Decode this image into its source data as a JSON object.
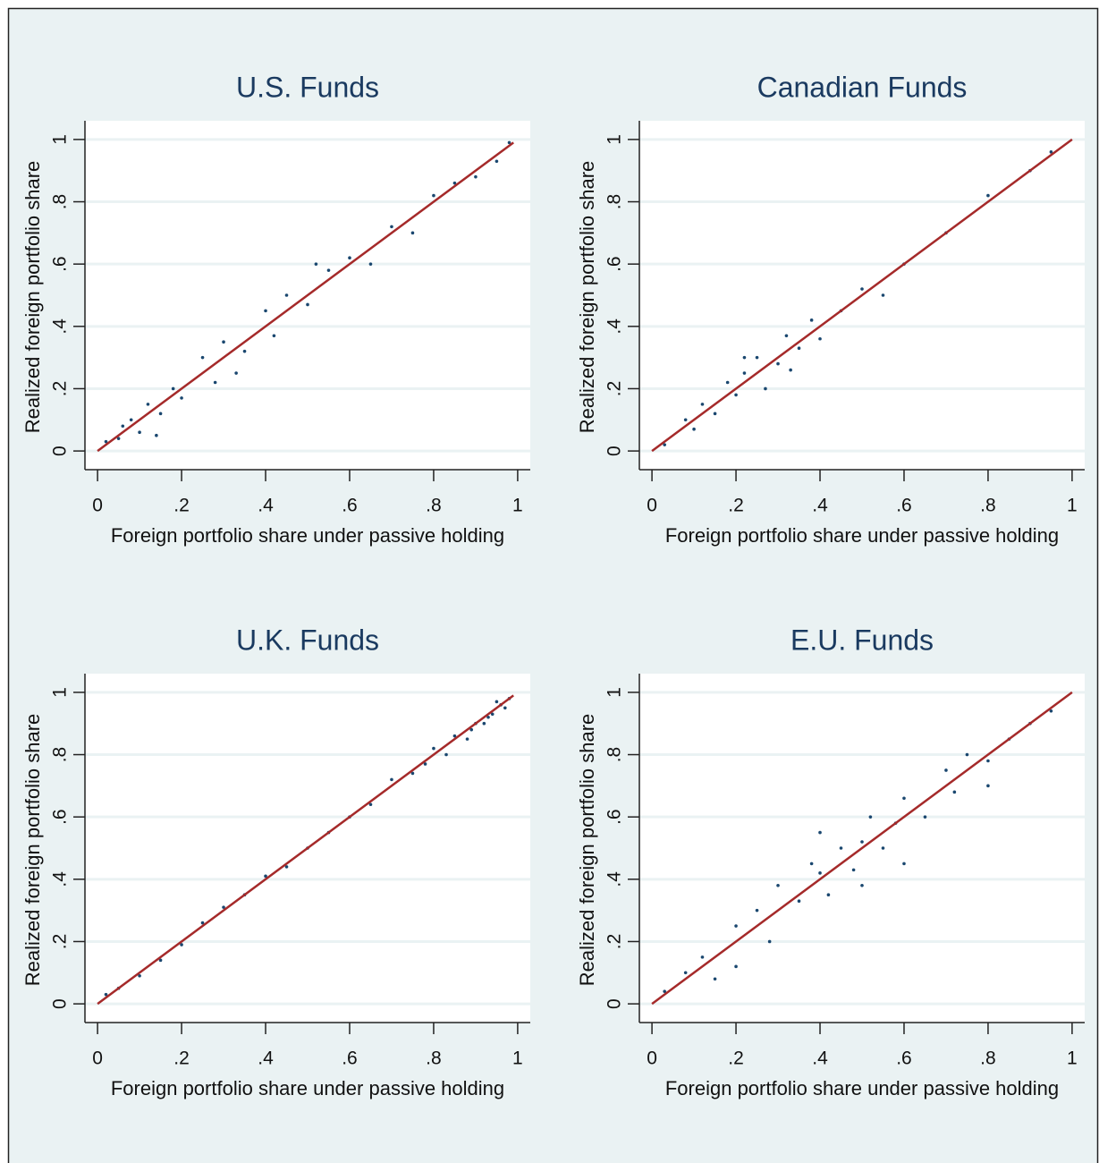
{
  "chart_data": [
    {
      "type": "scatter",
      "title": "U.S. Funds",
      "x_label": "Foreign portfolio share under passive holding",
      "y_label": "Realized foreign portfolio share",
      "xlim": [
        -0.03,
        1.03
      ],
      "ylim": [
        -0.06,
        1.06
      ],
      "xticks": [
        0,
        {
          "value": 0.2,
          "label": ".2"
        },
        {
          "value": 0.4,
          "label": ".4"
        },
        {
          "value": 0.6,
          "label": ".6"
        },
        {
          "value": 0.8,
          "label": ".8"
        },
        1
      ],
      "yticks": [
        0,
        {
          "value": 0.2,
          "label": ".2"
        },
        {
          "value": 0.4,
          "label": ".4"
        },
        {
          "value": 0.6,
          "label": ".6"
        },
        {
          "value": 0.8,
          "label": ".8"
        },
        1
      ],
      "grid": true,
      "series": [
        {
          "type": "scatter",
          "color": "#1a476f",
          "x": [
            0.02,
            0.05,
            0.08,
            0.1,
            0.12,
            0.15,
            0.18,
            0.2,
            0.25,
            0.28,
            0.3,
            0.35,
            0.4,
            0.42,
            0.45,
            0.5,
            0.55,
            0.6,
            0.65,
            0.7,
            0.75,
            0.8,
            0.85,
            0.9,
            0.95,
            0.98,
            0.06,
            0.14,
            0.33,
            0.52
          ],
          "values": [
            0.03,
            0.04,
            0.1,
            0.06,
            0.15,
            0.12,
            0.2,
            0.17,
            0.3,
            0.22,
            0.35,
            0.32,
            0.45,
            0.37,
            0.5,
            0.47,
            0.58,
            0.62,
            0.6,
            0.72,
            0.7,
            0.82,
            0.86,
            0.88,
            0.93,
            0.99,
            0.08,
            0.05,
            0.25,
            0.6
          ]
        },
        {
          "type": "line",
          "color": "#a52a2a",
          "x": [
            0,
            0.99
          ],
          "values": [
            0,
            0.99
          ]
        }
      ]
    },
    {
      "type": "scatter",
      "title": "Canadian Funds",
      "x_label": "Foreign portfolio share under passive holding",
      "y_label": "Realized foreign portfolio share",
      "xlim": [
        -0.03,
        1.03
      ],
      "ylim": [
        -0.06,
        1.06
      ],
      "xticks": [
        0,
        {
          "value": 0.2,
          "label": ".2"
        },
        {
          "value": 0.4,
          "label": ".4"
        },
        {
          "value": 0.6,
          "label": ".6"
        },
        {
          "value": 0.8,
          "label": ".8"
        },
        1
      ],
      "yticks": [
        0,
        {
          "value": 0.2,
          "label": ".2"
        },
        {
          "value": 0.4,
          "label": ".4"
        },
        {
          "value": 0.6,
          "label": ".6"
        },
        {
          "value": 0.8,
          "label": ".8"
        },
        1
      ],
      "grid": true,
      "series": [
        {
          "type": "scatter",
          "color": "#1a476f",
          "x": [
            0.03,
            0.08,
            0.1,
            0.12,
            0.15,
            0.18,
            0.2,
            0.22,
            0.25,
            0.27,
            0.3,
            0.32,
            0.35,
            0.38,
            0.4,
            0.45,
            0.5,
            0.55,
            0.6,
            0.7,
            0.8,
            0.9,
            0.95,
            0.22,
            0.33
          ],
          "values": [
            0.02,
            0.1,
            0.07,
            0.15,
            0.12,
            0.22,
            0.18,
            0.25,
            0.3,
            0.2,
            0.28,
            0.37,
            0.33,
            0.42,
            0.36,
            0.45,
            0.52,
            0.5,
            0.6,
            0.7,
            0.82,
            0.9,
            0.96,
            0.3,
            0.26
          ]
        },
        {
          "type": "line",
          "color": "#a52a2a",
          "x": [
            0,
            1
          ],
          "values": [
            0,
            1
          ]
        }
      ]
    },
    {
      "type": "scatter",
      "title": "U.K. Funds",
      "x_label": "Foreign portfolio share under passive holding",
      "y_label": "Realized foreign portfolio share",
      "xlim": [
        -0.03,
        1.03
      ],
      "ylim": [
        -0.06,
        1.06
      ],
      "xticks": [
        0,
        {
          "value": 0.2,
          "label": ".2"
        },
        {
          "value": 0.4,
          "label": ".4"
        },
        {
          "value": 0.6,
          "label": ".6"
        },
        {
          "value": 0.8,
          "label": ".8"
        },
        1
      ],
      "yticks": [
        0,
        {
          "value": 0.2,
          "label": ".2"
        },
        {
          "value": 0.4,
          "label": ".4"
        },
        {
          "value": 0.6,
          "label": ".6"
        },
        {
          "value": 0.8,
          "label": ".8"
        },
        1
      ],
      "grid": true,
      "series": [
        {
          "type": "scatter",
          "color": "#1a476f",
          "x": [
            0.02,
            0.05,
            0.1,
            0.15,
            0.2,
            0.25,
            0.3,
            0.35,
            0.4,
            0.45,
            0.5,
            0.55,
            0.6,
            0.65,
            0.7,
            0.75,
            0.78,
            0.8,
            0.83,
            0.85,
            0.88,
            0.9,
            0.92,
            0.94,
            0.96,
            0.97,
            0.98,
            0.89,
            0.93,
            0.95
          ],
          "values": [
            0.03,
            0.05,
            0.09,
            0.14,
            0.19,
            0.26,
            0.31,
            0.35,
            0.41,
            0.44,
            0.5,
            0.55,
            0.6,
            0.64,
            0.72,
            0.74,
            0.77,
            0.82,
            0.8,
            0.86,
            0.85,
            0.9,
            0.9,
            0.93,
            0.96,
            0.95,
            0.98,
            0.88,
            0.92,
            0.97
          ]
        },
        {
          "type": "line",
          "color": "#a52a2a",
          "x": [
            0,
            0.99
          ],
          "values": [
            0,
            0.99
          ]
        }
      ]
    },
    {
      "type": "scatter",
      "title": "E.U. Funds",
      "x_label": "Foreign portfolio share under passive holding",
      "y_label": "Realized foreign portfolio share",
      "xlim": [
        -0.03,
        1.03
      ],
      "ylim": [
        -0.06,
        1.06
      ],
      "xticks": [
        0,
        {
          "value": 0.2,
          "label": ".2"
        },
        {
          "value": 0.4,
          "label": ".4"
        },
        {
          "value": 0.6,
          "label": ".6"
        },
        {
          "value": 0.8,
          "label": ".8"
        },
        1
      ],
      "yticks": [
        0,
        {
          "value": 0.2,
          "label": ".2"
        },
        {
          "value": 0.4,
          "label": ".4"
        },
        {
          "value": 0.6,
          "label": ".6"
        },
        {
          "value": 0.8,
          "label": ".8"
        },
        1
      ],
      "grid": true,
      "series": [
        {
          "type": "scatter",
          "color": "#1a476f",
          "x": [
            0.03,
            0.08,
            0.12,
            0.15,
            0.2,
            0.25,
            0.28,
            0.3,
            0.35,
            0.38,
            0.4,
            0.42,
            0.45,
            0.48,
            0.5,
            0.52,
            0.55,
            0.58,
            0.6,
            0.65,
            0.7,
            0.72,
            0.75,
            0.8,
            0.85,
            0.9,
            0.95,
            0.2,
            0.4,
            0.6,
            0.8,
            0.5
          ],
          "values": [
            0.04,
            0.1,
            0.15,
            0.08,
            0.25,
            0.3,
            0.2,
            0.38,
            0.33,
            0.45,
            0.42,
            0.35,
            0.5,
            0.43,
            0.52,
            0.6,
            0.5,
            0.58,
            0.66,
            0.6,
            0.75,
            0.68,
            0.8,
            0.78,
            0.85,
            0.9,
            0.94,
            0.12,
            0.55,
            0.45,
            0.7,
            0.38
          ]
        },
        {
          "type": "line",
          "color": "#a52a2a",
          "x": [
            0,
            1
          ],
          "values": [
            0,
            1
          ]
        }
      ]
    }
  ]
}
